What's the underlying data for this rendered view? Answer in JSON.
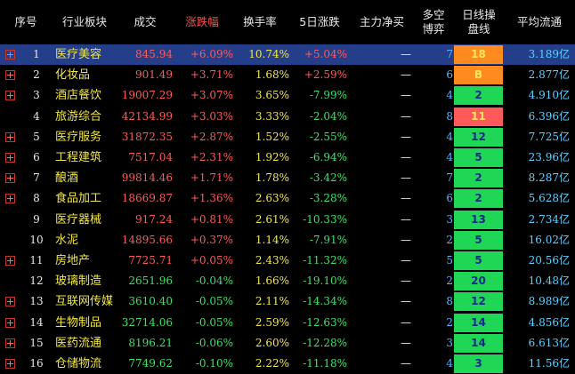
{
  "colors": {
    "badge_green": "#1fd655",
    "badge_red": "#ff5a5a",
    "badge_orange": "#ff8a1f",
    "badge_text_dark": "#102a8a",
    "badge_text_yellow": "#ffe45c",
    "selected_row": "#243e8a"
  },
  "icons": {
    "expand": "plus-box-icon"
  },
  "header": {
    "index": "序号",
    "sector": "行业板块",
    "volume": "成交",
    "change": "涨跌幅",
    "turnover": "换手率",
    "change5d": "5日涨跌",
    "net_inflow": "主力净买",
    "long_short": "多空\n博弈",
    "daily_setup": "日线操\n盘线",
    "float_mcap": "平均流通"
  },
  "rows": [
    {
      "idx": "1",
      "name": "医疗美容",
      "volume": "845.94",
      "change": "+6.09%",
      "turnover": "10.74%",
      "change5d": "+5.04%",
      "net": "—",
      "ls": "7",
      "badge": "18",
      "badge_color": "orange",
      "float": "3.189亿",
      "expand": true,
      "dir": "up",
      "dir5": "up",
      "selected": true
    },
    {
      "idx": "2",
      "name": "化妆品",
      "volume": "901.49",
      "change": "+3.71%",
      "turnover": "1.68%",
      "change5d": "+2.59%",
      "net": "—",
      "ls": "6",
      "badge": "B",
      "badge_color": "orange",
      "float": "2.877亿",
      "expand": true,
      "dir": "up",
      "dir5": "up"
    },
    {
      "idx": "3",
      "name": "酒店餐饮",
      "volume": "19007.29",
      "change": "+3.07%",
      "turnover": "3.65%",
      "change5d": "-7.99%",
      "net": "—",
      "ls": "4",
      "badge": "2",
      "badge_color": "green",
      "float": "4.910亿",
      "expand": true,
      "dir": "up",
      "dir5": "down"
    },
    {
      "idx": "4",
      "name": "旅游综合",
      "volume": "42134.99",
      "change": "+3.03%",
      "turnover": "3.33%",
      "change5d": "-2.04%",
      "net": "—",
      "ls": "8",
      "badge": "11",
      "badge_color": "red",
      "float": "6.396亿",
      "expand": false,
      "dir": "up",
      "dir5": "down"
    },
    {
      "idx": "5",
      "name": "医疗服务",
      "volume": "31872.35",
      "change": "+2.87%",
      "turnover": "1.52%",
      "change5d": "-2.55%",
      "net": "—",
      "ls": "4",
      "badge": "12",
      "badge_color": "green",
      "float": "7.725亿",
      "expand": true,
      "dir": "up",
      "dir5": "down"
    },
    {
      "idx": "6",
      "name": "工程建筑",
      "volume": "7517.04",
      "change": "+2.31%",
      "turnover": "1.92%",
      "change5d": "-6.94%",
      "net": "—",
      "ls": "4",
      "badge": "5",
      "badge_color": "green",
      "float": "23.96亿",
      "expand": true,
      "dir": "up",
      "dir5": "down"
    },
    {
      "idx": "7",
      "name": "酿酒",
      "volume": "99814.46",
      "change": "+1.71%",
      "turnover": "1.78%",
      "change5d": "-3.42%",
      "net": "—",
      "ls": "7",
      "badge": "2",
      "badge_color": "green",
      "float": "8.287亿",
      "expand": true,
      "dir": "up",
      "dir5": "down"
    },
    {
      "idx": "8",
      "name": "食品加工",
      "volume": "18669.87",
      "change": "+1.36%",
      "turnover": "2.63%",
      "change5d": "-3.28%",
      "net": "—",
      "ls": "6",
      "badge": "2",
      "badge_color": "green",
      "float": "5.628亿",
      "expand": true,
      "dir": "up",
      "dir5": "down"
    },
    {
      "idx": "9",
      "name": "医疗器械",
      "volume": "917.24",
      "change": "+0.81%",
      "turnover": "2.61%",
      "change5d": "-10.33%",
      "net": "—",
      "ls": "3",
      "badge": "13",
      "badge_color": "green",
      "float": "2.734亿",
      "expand": false,
      "dir": "up",
      "dir5": "down"
    },
    {
      "idx": "10",
      "name": "水泥",
      "volume": "14895.66",
      "change": "+0.37%",
      "turnover": "1.14%",
      "change5d": "-7.91%",
      "net": "—",
      "ls": "2",
      "badge": "5",
      "badge_color": "green",
      "float": "16.02亿",
      "expand": false,
      "dir": "up",
      "dir5": "down"
    },
    {
      "idx": "11",
      "name": "房地产",
      "volume": "7725.71",
      "change": "+0.05%",
      "turnover": "2.43%",
      "change5d": "-11.32%",
      "net": "—",
      "ls": "5",
      "badge": "5",
      "badge_color": "green",
      "float": "20.56亿",
      "expand": true,
      "dir": "up",
      "dir5": "down"
    },
    {
      "idx": "12",
      "name": "玻璃制造",
      "volume": "2651.96",
      "change": "-0.04%",
      "turnover": "1.66%",
      "change5d": "-19.10%",
      "net": "—",
      "ls": "2",
      "badge": "20",
      "badge_color": "green",
      "float": "10.48亿",
      "expand": false,
      "dir": "down",
      "dir5": "down"
    },
    {
      "idx": "13",
      "name": "互联网传媒",
      "volume": "3610.40",
      "change": "-0.05%",
      "turnover": "2.11%",
      "change5d": "-14.34%",
      "net": "—",
      "ls": "8",
      "badge": "12",
      "badge_color": "green",
      "float": "8.989亿",
      "expand": true,
      "dir": "down",
      "dir5": "down"
    },
    {
      "idx": "14",
      "name": "生物制品",
      "volume": "32714.06",
      "change": "-0.05%",
      "turnover": "2.59%",
      "change5d": "-12.63%",
      "net": "—",
      "ls": "2",
      "badge": "14",
      "badge_color": "green",
      "float": "4.856亿",
      "expand": true,
      "dir": "down",
      "dir5": "down"
    },
    {
      "idx": "15",
      "name": "医药流通",
      "volume": "8196.21",
      "change": "-0.06%",
      "turnover": "2.60%",
      "change5d": "-12.28%",
      "net": "—",
      "ls": "3",
      "badge": "14",
      "badge_color": "green",
      "float": "6.613亿",
      "expand": true,
      "dir": "down",
      "dir5": "down"
    },
    {
      "idx": "16",
      "name": "仓储物流",
      "volume": "7749.62",
      "change": "-0.10%",
      "turnover": "2.22%",
      "change5d": "-11.18%",
      "net": "—",
      "ls": "4",
      "badge": "3",
      "badge_color": "green",
      "float": "11.56亿",
      "expand": true,
      "dir": "down",
      "dir5": "down"
    }
  ]
}
